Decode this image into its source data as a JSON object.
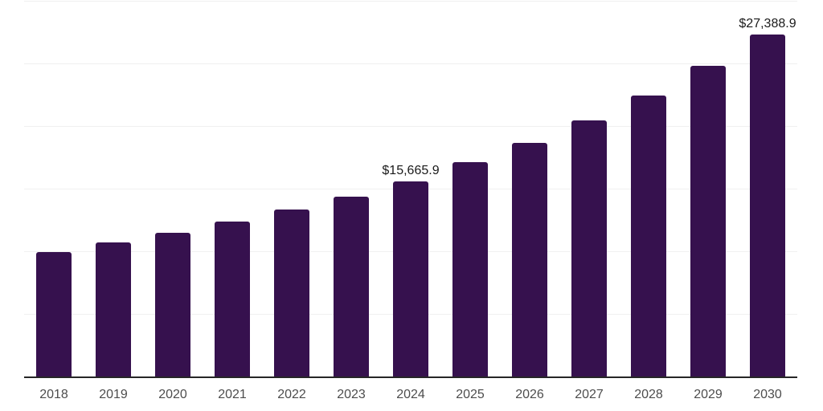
{
  "chart_data": {
    "type": "bar",
    "title": "",
    "xlabel": "",
    "ylabel": "",
    "categories": [
      "2018",
      "2019",
      "2020",
      "2021",
      "2022",
      "2023",
      "2024",
      "2025",
      "2026",
      "2027",
      "2028",
      "2029",
      "2030"
    ],
    "values": [
      9980,
      10790,
      11550,
      12410,
      13390,
      14450,
      15665.9,
      17170,
      18700,
      20530,
      22530,
      24880,
      27388.9
    ],
    "data_labels": [
      "",
      "",
      "",
      "",
      "",
      "",
      "$15,665.9",
      "",
      "",
      "",
      "",
      "",
      "$27,388.9"
    ],
    "ylim": [
      0,
      30000
    ],
    "gridline_interval": 5000,
    "grid": true,
    "legend": false,
    "colors": {
      "bar": "#36114E",
      "gridline": "#f0f0f0",
      "axis_line": "#262626",
      "tick_label": "#4d4d4d",
      "data_label": "#1a1a1a",
      "background": "#ffffff"
    }
  }
}
